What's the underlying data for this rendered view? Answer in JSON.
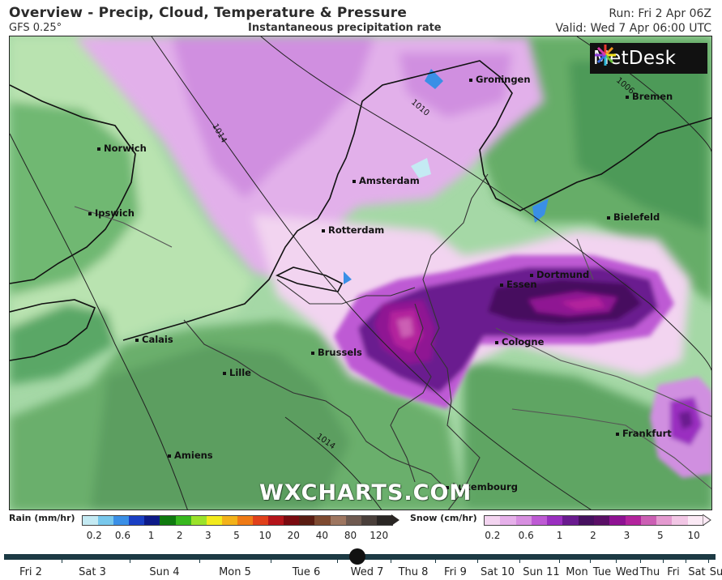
{
  "header": {
    "title": "Overview - Precip, Cloud, Temperature & Pressure",
    "model": "GFS 0.25°",
    "subtitle": "Instantaneous precipitation rate",
    "run": "Run: Fri 2 Apr 06Z",
    "valid": "Valid: Wed 7 Apr 06:00 UTC"
  },
  "brand": {
    "name": "MetDesk"
  },
  "watermark": "WXCHARTS.COM",
  "cities": [
    {
      "name": "Groningen"
    },
    {
      "name": "Bremen"
    },
    {
      "name": "Norwich"
    },
    {
      "name": "Amsterdam"
    },
    {
      "name": "Ipswich"
    },
    {
      "name": "Bielefeld"
    },
    {
      "name": "Rotterdam"
    },
    {
      "name": "Dortmund"
    },
    {
      "name": "Essen"
    },
    {
      "name": "Calais"
    },
    {
      "name": "Cologne"
    },
    {
      "name": "Brussels"
    },
    {
      "name": "Lille"
    },
    {
      "name": "Frankfurt"
    },
    {
      "name": "Amiens"
    },
    {
      "name": "Luxembourg"
    }
  ],
  "isobars": [
    "1014",
    "1010",
    "1006",
    "1014"
  ],
  "legend": {
    "rain_label": "Rain (mm/hr)",
    "rain_ticks": [
      "0.2",
      "0.6",
      "1",
      "2",
      "3",
      "5",
      "10",
      "20",
      "40",
      "80",
      "120"
    ],
    "rain_colors": [
      "#c4eaf3",
      "#78c8ec",
      "#3a8fe6",
      "#1a3fc4",
      "#0d1a88",
      "#0f7a0f",
      "#38b81e",
      "#9be22a",
      "#f2ea1c",
      "#f3b219",
      "#ef7a15",
      "#e0401a",
      "#b4141a",
      "#7a0a10",
      "#5a1c12",
      "#7e4a30",
      "#9e7660",
      "#6f5a50",
      "#4a3f3a",
      "#2a2624"
    ],
    "snow_label": "Snow (cm/hr)",
    "snow_ticks": [
      "0.2",
      "0.6",
      "1",
      "2",
      "3",
      "5",
      "10"
    ],
    "snow_colors": [
      "#f3d4f0",
      "#e6b0ea",
      "#d78fe0",
      "#be5ad4",
      "#9a2fc0",
      "#6a1a8f",
      "#46105f",
      "#5a0f66",
      "#8f1293",
      "#b3249d",
      "#cc5fb4",
      "#e49ad0",
      "#f2c6e5",
      "#fbe9f5"
    ]
  },
  "timeline": {
    "days": [
      "Fri 2",
      "Sat 3",
      "Sun 4",
      "Mon 5",
      "Tue 6",
      "Wed 7",
      "Thu 8",
      "Fri 9",
      "Sat 10",
      "Sun 11",
      "Mon",
      "Tue",
      "Wed",
      "Thu",
      "Fri",
      "Sat",
      "Su"
    ],
    "selected": "Wed 7"
  }
}
